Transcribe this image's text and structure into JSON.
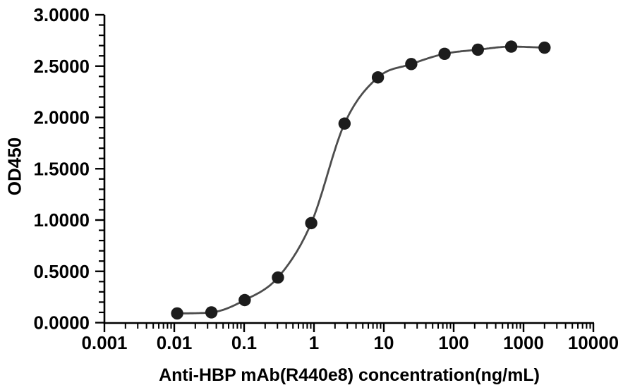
{
  "chart_data": {
    "type": "line",
    "title": "",
    "xlabel": "Anti-HBP mAb(R440e8) concentration(ng/mL)",
    "ylabel": "OD450",
    "x_scale": "log10",
    "xlim": [
      0.001,
      10000
    ],
    "ylim": [
      0.0,
      3.0
    ],
    "grid": false,
    "legend": "none",
    "x_tick_values": [
      0.001,
      0.01,
      0.1,
      1,
      10,
      100,
      1000,
      10000
    ],
    "x_tick_labels": [
      "0.001",
      "0.01",
      "0.1",
      "1",
      "10",
      "100",
      "1000",
      "10000"
    ],
    "y_tick_values": [
      0.0,
      0.5,
      1.0,
      1.5,
      2.0,
      2.5,
      3.0
    ],
    "y_tick_labels": [
      "0.0000",
      "0.5000",
      "1.0000",
      "1.5000",
      "2.0000",
      "2.5000",
      "3.0000"
    ],
    "y_minor_step": 0.1,
    "series": [
      {
        "name": "Anti-HBP mAb(R440e8)",
        "x": [
          0.011,
          0.034,
          0.102,
          0.305,
          0.914,
          2.74,
          8.23,
          24.7,
          74.1,
          222.2,
          666.7,
          2000
        ],
        "y": [
          0.09,
          0.1,
          0.22,
          0.44,
          0.97,
          1.94,
          2.39,
          2.52,
          2.62,
          2.66,
          2.69,
          2.68
        ],
        "marker": "circle",
        "curve": "smooth-sigmoid"
      }
    ],
    "style": {
      "line_color": "#4d4d4d",
      "marker_color": "#1c1c1c",
      "axis_color": "#000000",
      "text_color": "#000000",
      "background_color": "#ffffff"
    }
  }
}
